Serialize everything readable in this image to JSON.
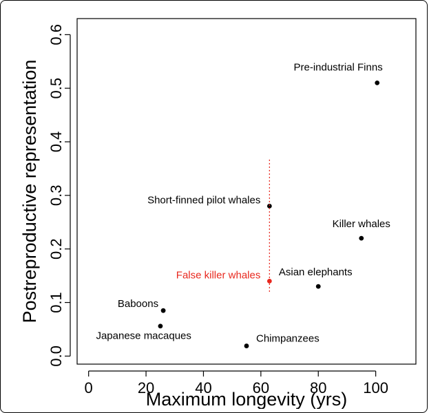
{
  "chart_data": {
    "type": "scatter",
    "xlabel": "Maximum longevity (yrs)",
    "ylabel": "Postreproductive representation",
    "xlim": [
      -4,
      114
    ],
    "ylim": [
      -0.015,
      0.63
    ],
    "xticks": [
      0,
      20,
      40,
      60,
      80,
      100
    ],
    "yticks": [
      0.0,
      0.1,
      0.2,
      0.3,
      0.4,
      0.5,
      0.6
    ],
    "xtick_labels": [
      "0",
      "20",
      "40",
      "60",
      "80",
      "100"
    ],
    "ytick_labels": [
      "0.0",
      "0.1",
      "0.2",
      "0.3",
      "0.4",
      "0.5",
      "0.6"
    ],
    "grid": false,
    "legend": "none",
    "points": [
      {
        "name": "Pre-industrial Finns",
        "x": 100.5,
        "y": 0.51,
        "color": "#000000",
        "label_pos": "above-left"
      },
      {
        "name": "Short-finned pilot whales",
        "x": 63,
        "y": 0.28,
        "color": "#000000",
        "label_pos": "left"
      },
      {
        "name": "Killer whales",
        "x": 95,
        "y": 0.22,
        "color": "#000000",
        "label_pos": "above"
      },
      {
        "name": "False killer whales",
        "x": 63,
        "y": 0.14,
        "color": "#e8281e",
        "label_pos": "left",
        "error_range": [
          0.12,
          0.37
        ]
      },
      {
        "name": "Asian elephants",
        "x": 80,
        "y": 0.13,
        "color": "#000000",
        "label_pos": "above"
      },
      {
        "name": "Baboons",
        "x": 26,
        "y": 0.085,
        "color": "#000000",
        "label_pos": "left"
      },
      {
        "name": "Japanese macaques",
        "x": 25,
        "y": 0.056,
        "color": "#000000",
        "label_pos": "below-left"
      },
      {
        "name": "Chimpanzees",
        "x": 55,
        "y": 0.019,
        "color": "#000000",
        "label_pos": "right"
      }
    ],
    "colors": {
      "highlight": "#e8281e",
      "default": "#000000"
    }
  }
}
